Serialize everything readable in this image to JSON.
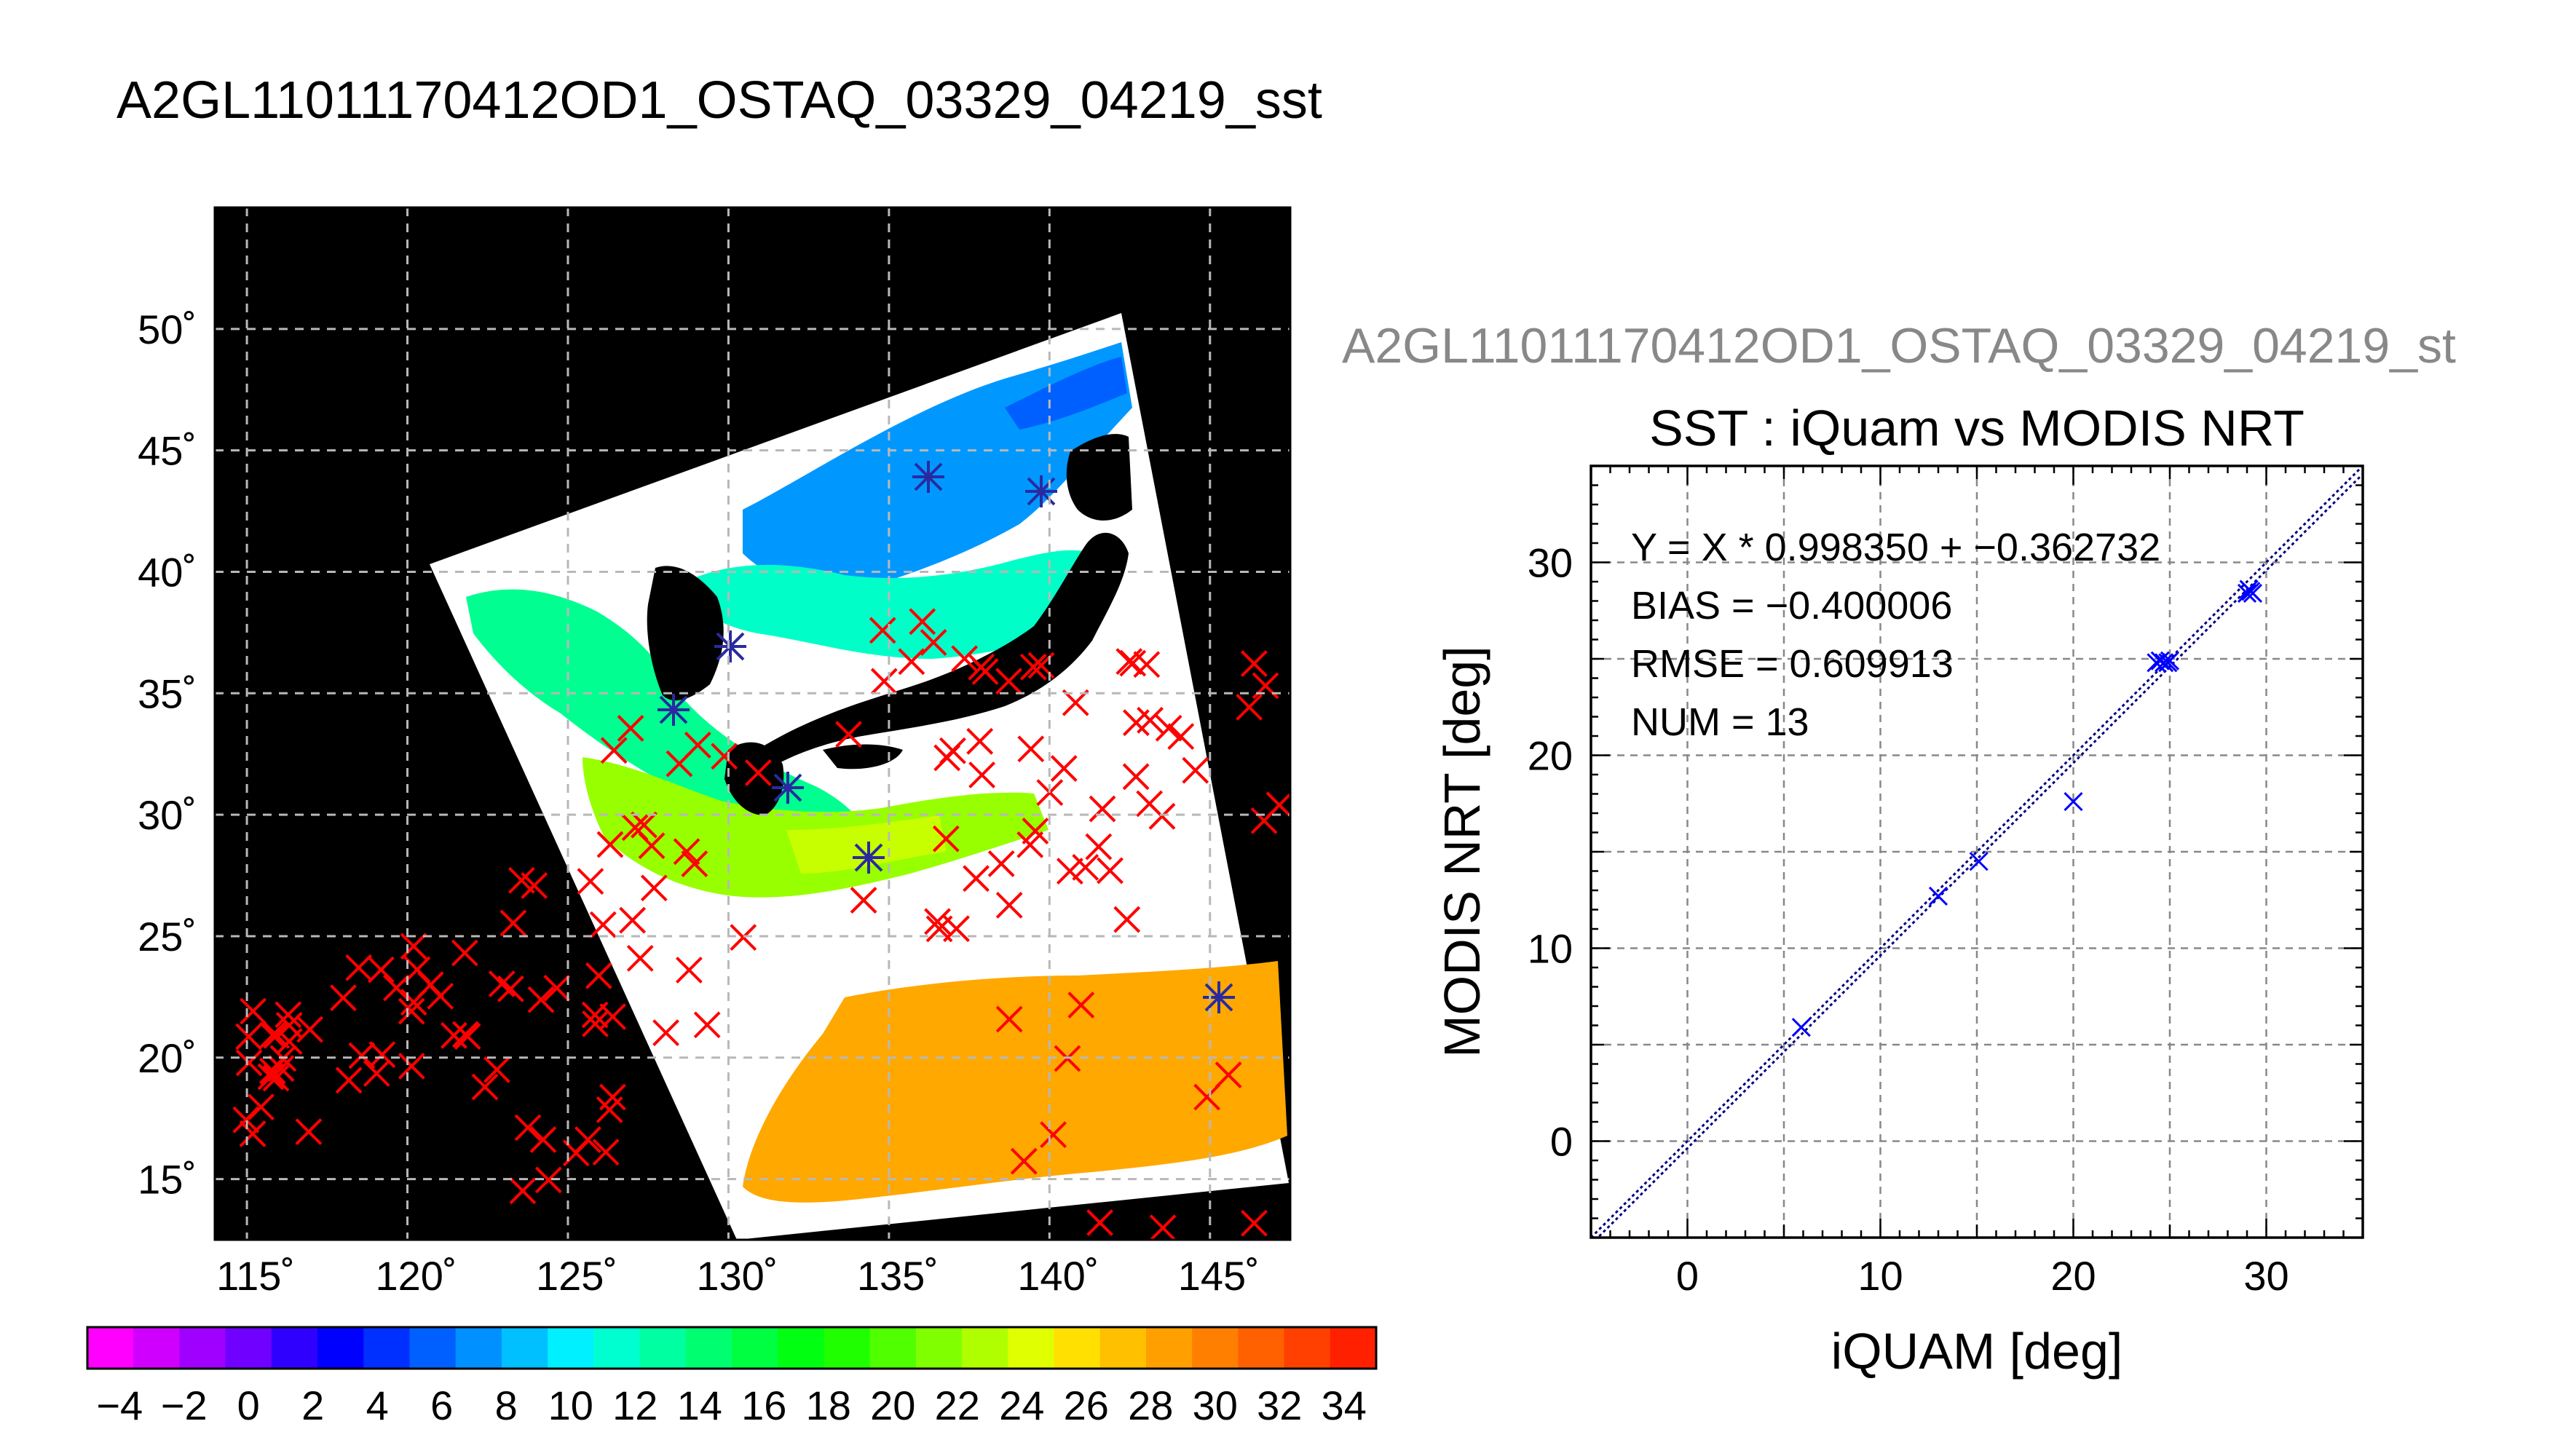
{
  "page": {
    "main_title": "A2GL11011170412OD1_OSTAQ_03329_04219_sst"
  },
  "map": {
    "lat_labels": [
      "50˚",
      "45˚",
      "40˚",
      "35˚",
      "30˚",
      "25˚",
      "20˚",
      "15˚"
    ],
    "lat_values": [
      50,
      45,
      40,
      35,
      30,
      25,
      20,
      15
    ],
    "lon_labels": [
      "115˚",
      "120˚",
      "125˚",
      "130˚",
      "135˚",
      "140˚",
      "145˚"
    ],
    "lon_values": [
      115,
      120,
      125,
      130,
      135,
      140,
      145
    ],
    "lon_range": [
      114,
      147.5
    ],
    "lat_range": [
      12.5,
      55
    ]
  },
  "colorbar": {
    "tick_labels": [
      "−4",
      "−2",
      "0",
      "2",
      "4",
      "6",
      "8",
      "10",
      "12",
      "14",
      "16",
      "18",
      "20",
      "22",
      "24",
      "26",
      "28",
      "30",
      "32",
      "34"
    ],
    "tick_values": [
      -4,
      -2,
      0,
      2,
      4,
      6,
      8,
      10,
      12,
      14,
      16,
      18,
      20,
      22,
      24,
      26,
      28,
      30,
      32,
      34
    ],
    "range": [
      -5,
      35
    ],
    "colors": [
      "#ff00ff",
      "#d000ff",
      "#a000ff",
      "#7000ff",
      "#3000ff",
      "#0000ff",
      "#0030ff",
      "#0060ff",
      "#0090ff",
      "#00c0ff",
      "#00f0ff",
      "#00ffd0",
      "#00ffa0",
      "#00ff70",
      "#00ff40",
      "#00ff10",
      "#20ff00",
      "#50ff00",
      "#80ff00",
      "#b0ff00",
      "#e0ff00",
      "#ffe000",
      "#ffc000",
      "#ffa000",
      "#ff8000",
      "#ff6000",
      "#ff4000",
      "#ff2000"
    ]
  },
  "scatter_panel": {
    "overflow_title": "A2GL11011170412OD1_OSTAQ_03329_04219_st",
    "fit_text": "Y = X * 0.998350 + −0.362732",
    "bias_text": "BIAS = −0.400006",
    "rmse_text": "RMSE = 0.609913",
    "num_text": "NUM = 13",
    "x_tick_labels": [
      "0",
      "10",
      "20",
      "30"
    ],
    "y_tick_labels": [
      "0",
      "10",
      "20",
      "30"
    ]
  },
  "chart_data": {
    "type": "scatter",
    "title": "SST : iQuam vs MODIS NRT",
    "xlabel": "iQUAM [deg]",
    "ylabel": "MODIS NRT [deg]",
    "xlim": [
      -5,
      35
    ],
    "ylim": [
      -5,
      35
    ],
    "xticks": [
      0,
      10,
      20,
      30
    ],
    "yticks": [
      0,
      10,
      20,
      30
    ],
    "grid": true,
    "fit": {
      "slope": 0.99835,
      "intercept": -0.362732
    },
    "series": [
      {
        "marker": "x",
        "color": "#0000ff",
        "points": [
          [
            5.9,
            5.9
          ],
          [
            13.0,
            12.7
          ],
          [
            15.1,
            14.5
          ],
          [
            20.0,
            17.6
          ],
          [
            24.3,
            24.8
          ],
          [
            24.5,
            24.9
          ],
          [
            24.7,
            24.8
          ],
          [
            24.9,
            24.8
          ],
          [
            25.0,
            24.9
          ],
          [
            29.0,
            28.4
          ],
          [
            29.1,
            28.6
          ],
          [
            29.2,
            28.5
          ],
          [
            29.3,
            28.4
          ]
        ]
      }
    ]
  }
}
